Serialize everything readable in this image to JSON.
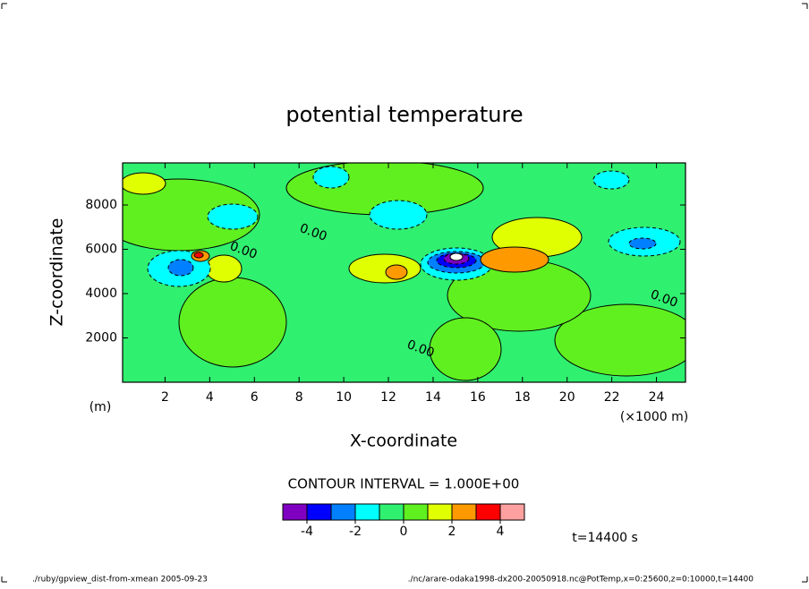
{
  "chart_data": {
    "type": "contour",
    "title": "potential temperature",
    "x_label": "X-coordinate",
    "x_unit": "(×1000 m)",
    "y_label": "Z-coordinate",
    "y_unit": "(m)",
    "xlim": [
      0.1,
      25.3
    ],
    "xticks": [
      2,
      4,
      6,
      8,
      10,
      12,
      14,
      16,
      18,
      20,
      22,
      24
    ],
    "ylim": [
      0,
      9900
    ],
    "yticks": [
      2000,
      4000,
      6000,
      8000
    ],
    "contour_interval_text": "CONTOUR INTERVAL = 1.000E+00",
    "contour_labels": [
      "0.00",
      "0.00",
      "0.00",
      "0.00"
    ],
    "levels": [
      -5,
      -4,
      -3,
      -2,
      -1,
      0,
      1,
      2,
      3,
      4,
      5
    ],
    "colors": [
      "#7f00c0",
      "#0000ff",
      "#0080ff",
      "#00ffff",
      "#30f070",
      "#60f020",
      "#e0ff00",
      "#ff9900",
      "#ff0000",
      "#ffa0a0"
    ],
    "colorbar_ticks": [
      -4,
      -2,
      0,
      2,
      4
    ],
    "time_label": "t=14400 s",
    "footer_left": "./ruby/gpview_dist-from-xmean  2005-09-23",
    "footer_right": "./nc/arare-odaka1998-dx200-20050918.nc@PotTemp,x=0:25600,z=0:10000,t=14400"
  }
}
